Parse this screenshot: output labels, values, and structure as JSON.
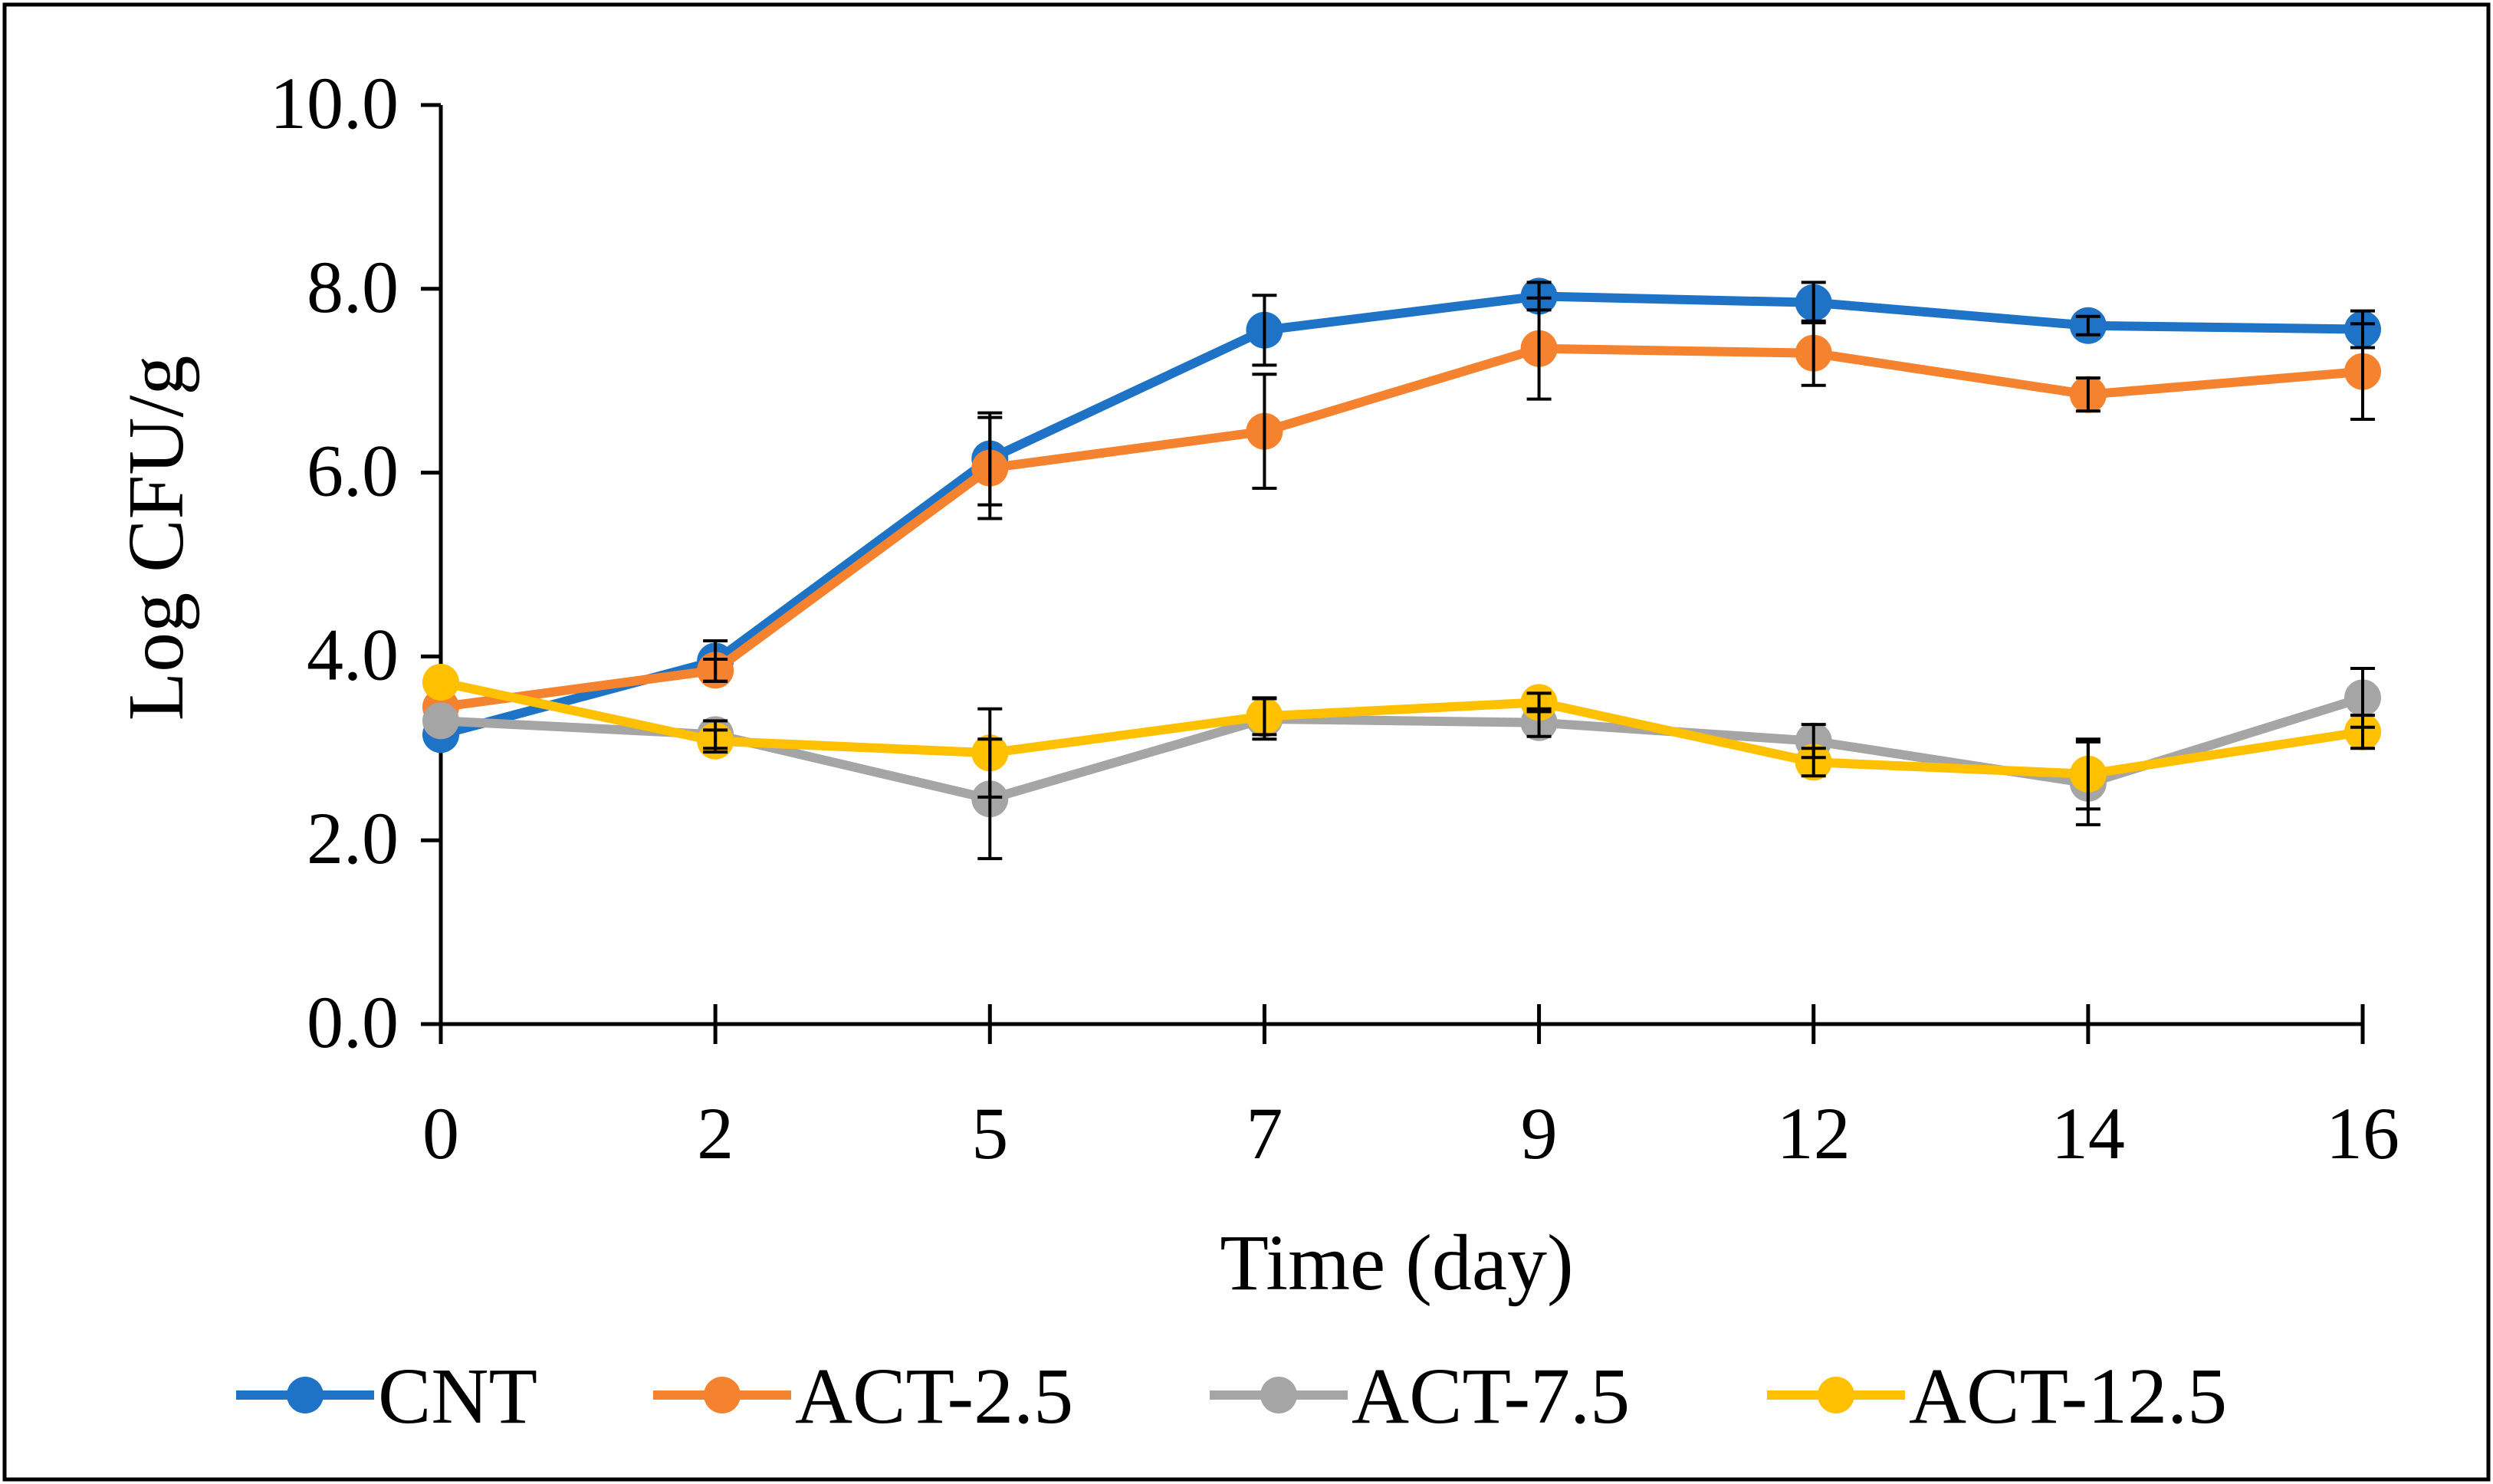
{
  "chart_data": {
    "type": "line",
    "xlabel": "Time (day)",
    "ylabel": "Log CFU/g",
    "x": [
      "0",
      "2",
      "5",
      "7",
      "9",
      "12",
      "14",
      "16"
    ],
    "ylim": [
      0,
      10
    ],
    "yticks": [
      "0.0",
      "2.0",
      "4.0",
      "6.0",
      "8.0",
      "10.0"
    ],
    "grid": false,
    "legend_position": "bottom",
    "series": [
      {
        "name": "CNT",
        "color": "#1f73c6",
        "values": [
          3.15,
          3.95,
          6.15,
          7.55,
          7.92,
          7.85,
          7.6,
          7.56
        ],
        "errors": [
          0.0,
          0.22,
          0.5,
          0.38,
          0.15,
          0.22,
          0.1,
          0.2
        ]
      },
      {
        "name": "ACT-2.5",
        "color": "#f5822e",
        "values": [
          3.45,
          3.85,
          6.05,
          6.45,
          7.35,
          7.3,
          6.85,
          7.1
        ],
        "errors": [
          0.0,
          0.12,
          0.55,
          0.62,
          0.55,
          0.35,
          0.18,
          0.52
        ]
      },
      {
        "name": "ACT-7.5",
        "color": "#a5a5a5",
        "values": [
          3.3,
          3.15,
          2.45,
          3.32,
          3.28,
          3.08,
          2.62,
          3.55
        ],
        "errors": [
          0.0,
          0.15,
          0.65,
          0.22,
          0.15,
          0.18,
          0.45,
          0.32
        ]
      },
      {
        "name": "ACT-12.5",
        "color": "#ffc000",
        "values": [
          3.72,
          3.08,
          2.95,
          3.35,
          3.5,
          2.85,
          2.72,
          3.18
        ],
        "errors": [
          0.0,
          0.12,
          0.48,
          0.2,
          0.1,
          0.15,
          0.38,
          0.18
        ]
      }
    ]
  }
}
